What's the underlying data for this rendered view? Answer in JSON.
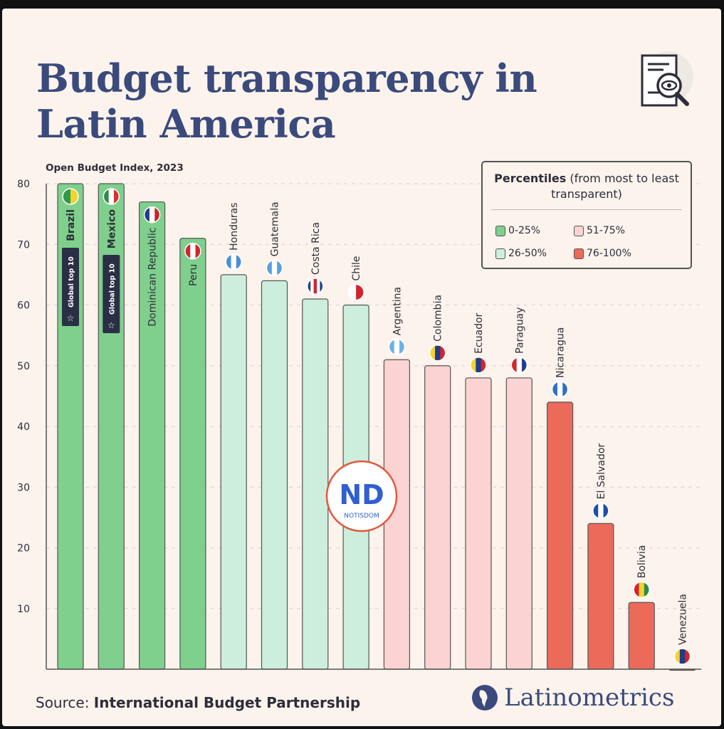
{
  "title_line1": "Budget transparency in",
  "title_line2": "Latin America",
  "source_prefix": "Source:",
  "source_name": "International Budget Partnership",
  "brand": "Latinometrics",
  "watermark": "ND NOTISDOM",
  "legend": {
    "title_bold": "Percentiles",
    "title_rest": " (from most to least transparent)",
    "items": [
      {
        "label": "0-25%",
        "color": "#7fcf8d"
      },
      {
        "label": "51-75%",
        "color": "#fbd3d2"
      },
      {
        "label": "26-50%",
        "color": "#cdeedc"
      },
      {
        "label": "76-100%",
        "color": "#ec6a5a"
      }
    ]
  },
  "chart_data": {
    "type": "bar",
    "title": "Budget transparency in Latin America",
    "ylabel": "Open Budget Index, 2023",
    "ylim": [
      0,
      80
    ],
    "yticks": [
      10,
      20,
      30,
      40,
      50,
      60,
      70,
      80
    ],
    "grid": true,
    "legend_position": "top-right",
    "badge": "Global top 10",
    "categories": [
      "Brazil",
      "Mexico",
      "Dominican Republic",
      "Peru",
      "Honduras",
      "Guatemala",
      "Costa Rica",
      "Chile",
      "Argentina",
      "Colombia",
      "Ecuador",
      "Paraguay",
      "Nicaragua",
      "El Salvador",
      "Bolivia",
      "Venezuela"
    ],
    "values": [
      80,
      80,
      77,
      71,
      65,
      64,
      61,
      60,
      51,
      50,
      48,
      48,
      44,
      24,
      11,
      0
    ],
    "percentile_group": [
      "0-25%",
      "0-25%",
      "0-25%",
      "0-25%",
      "26-50%",
      "26-50%",
      "26-50%",
      "26-50%",
      "51-75%",
      "51-75%",
      "51-75%",
      "51-75%",
      "76-100%",
      "76-100%",
      "76-100%",
      "76-100%"
    ],
    "global_top10": [
      "Brazil",
      "Mexico"
    ],
    "flag_colors": [
      [
        "#2d9b4a",
        "#f5d22e"
      ],
      [
        "#2d8a4a",
        "#ffffff",
        "#d4332f"
      ],
      [
        "#1f3d8a",
        "#ffffff",
        "#c8242f"
      ],
      [
        "#d4232f",
        "#ffffff",
        "#d4232f"
      ],
      [
        "#4a8fd8",
        "#ffffff",
        "#4a8fd8"
      ],
      [
        "#5aa0dd",
        "#ffffff",
        "#5aa0dd"
      ],
      [
        "#1f3d8a",
        "#ffffff",
        "#d4232f",
        "#ffffff",
        "#1f3d8a"
      ],
      [
        "#ffffff",
        "#d4232f"
      ],
      [
        "#6ab0e8",
        "#ffffff",
        "#6ab0e8"
      ],
      [
        "#f5d22e",
        "#1f3d8a",
        "#d4232f"
      ],
      [
        "#f5d22e",
        "#1f3d8a",
        "#d4232f"
      ],
      [
        "#d4232f",
        "#ffffff",
        "#1f3d8a"
      ],
      [
        "#2f6fc4",
        "#ffffff",
        "#2f6fc4"
      ],
      [
        "#1f4fa8",
        "#ffffff",
        "#1f4fa8"
      ],
      [
        "#d4232f",
        "#f5d22e",
        "#2d8a4a"
      ],
      [
        "#f5d22e",
        "#1f3d8a",
        "#d4232f"
      ]
    ]
  }
}
